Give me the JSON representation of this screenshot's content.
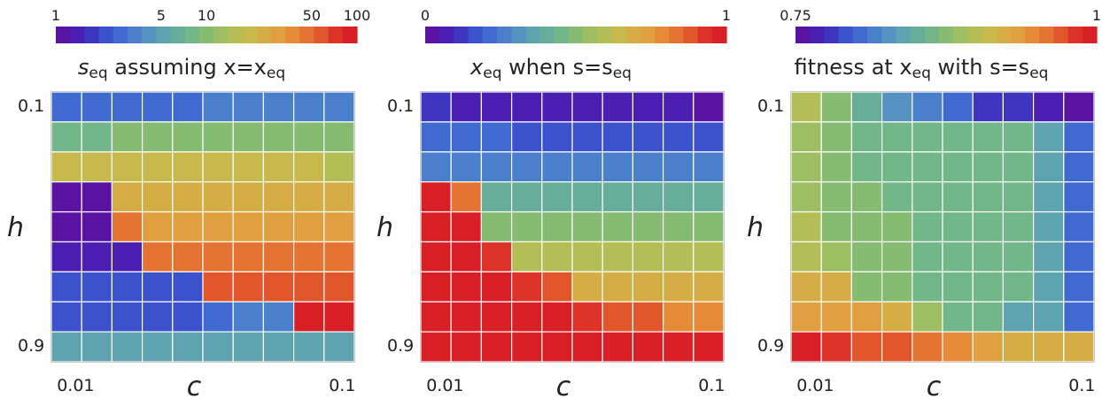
{
  "chart_data": [
    {
      "type": "heatmap",
      "title_main": "s",
      "title_sub": "eq",
      "title_rest": " assuming x=x",
      "title_sub2": "eq",
      "xlabel": "c",
      "ylabel": "h",
      "x_tick_labels": [
        "0.01",
        "0.1"
      ],
      "y_tick_labels": [
        "0.1",
        "0.9"
      ],
      "colorbar": {
        "scale": "log",
        "min": 1,
        "max": 100,
        "tick_labels": [
          "1",
          "5",
          "10",
          "50",
          "100"
        ],
        "tick_values": [
          1,
          5,
          10,
          50,
          100
        ]
      },
      "values": [
        [
          2.5,
          2.5,
          2.5,
          2.5,
          2.5,
          3,
          3,
          3,
          3,
          3
        ],
        [
          8,
          8,
          10,
          10,
          10,
          10,
          10,
          10,
          10,
          10
        ],
        [
          20,
          20,
          20,
          20,
          20,
          20,
          20,
          20,
          20,
          15
        ],
        [
          1,
          1,
          25,
          25,
          25,
          25,
          25,
          25,
          25,
          25
        ],
        [
          1,
          1,
          45,
          30,
          30,
          30,
          30,
          30,
          30,
          30
        ],
        [
          1.3,
          1.3,
          1.3,
          45,
          45,
          45,
          45,
          45,
          45,
          45
        ],
        [
          1.8,
          1.8,
          1.8,
          1.8,
          2.2,
          60,
          60,
          65,
          65,
          65
        ],
        [
          2,
          2,
          2,
          2,
          2,
          2.5,
          3.5,
          3.5,
          100,
          100
        ],
        [
          5,
          5,
          5,
          5,
          5,
          5,
          5,
          5,
          5,
          5
        ]
      ]
    },
    {
      "type": "heatmap",
      "title_main": "x",
      "title_sub": "eq",
      "title_rest": " when s=s",
      "title_sub2": "eq",
      "xlabel": "c",
      "ylabel": "h",
      "x_tick_labels": [
        "0.01",
        "0.1"
      ],
      "y_tick_labels": [
        "0.1",
        "0.9"
      ],
      "colorbar": {
        "scale": "linear",
        "min": 0,
        "max": 1,
        "tick_labels": [
          "0",
          "1"
        ],
        "tick_values": [
          0,
          1
        ]
      },
      "values": [
        [
          0.1,
          0.06,
          0.06,
          0.06,
          0.05,
          0.05,
          0.05,
          0.05,
          0.03,
          0.02
        ],
        [
          0.2,
          0.18,
          0.18,
          0.16,
          0.16,
          0.14,
          0.14,
          0.14,
          0.14,
          0.14
        ],
        [
          0.27,
          0.27,
          0.27,
          0.25,
          0.25,
          0.25,
          0.25,
          0.25,
          0.25,
          0.25
        ],
        [
          1.0,
          0.84,
          0.38,
          0.38,
          0.38,
          0.38,
          0.38,
          0.38,
          0.38,
          0.38
        ],
        [
          1.0,
          0.98,
          0.48,
          0.48,
          0.48,
          0.48,
          0.48,
          0.48,
          0.48,
          0.48
        ],
        [
          1.0,
          1.0,
          0.93,
          0.6,
          0.6,
          0.6,
          0.6,
          0.6,
          0.6,
          0.6
        ],
        [
          1.0,
          1.0,
          1.0,
          0.95,
          0.88,
          0.7,
          0.7,
          0.7,
          0.7,
          0.7
        ],
        [
          1.0,
          1.0,
          1.0,
          1.0,
          1.0,
          0.94,
          0.92,
          0.9,
          0.8,
          0.8
        ],
        [
          1.0,
          1.0,
          1.0,
          1.0,
          1.0,
          1.0,
          1.0,
          1.0,
          0.98,
          0.98
        ]
      ]
    },
    {
      "type": "heatmap",
      "title_main": "fitness at x",
      "title_sub": "eq",
      "title_rest": " with s=s",
      "title_sub2": "eq",
      "xlabel": "c",
      "ylabel": "h",
      "x_tick_labels": [
        "0.01",
        "0.1"
      ],
      "y_tick_labels": [
        "0.1",
        "0.9"
      ],
      "colorbar": {
        "scale": "linear",
        "min": 0.75,
        "max": 1,
        "tick_labels": [
          "0.75",
          "1"
        ],
        "tick_values": [
          0.75,
          1
        ]
      },
      "values": [
        [
          0.9,
          0.87,
          0.85,
          0.83,
          0.81,
          0.8,
          0.78,
          0.77,
          0.76,
          0.75
        ],
        [
          0.89,
          0.87,
          0.86,
          0.86,
          0.86,
          0.86,
          0.86,
          0.86,
          0.84,
          0.8
        ],
        [
          0.89,
          0.88,
          0.86,
          0.86,
          0.86,
          0.86,
          0.86,
          0.86,
          0.84,
          0.8
        ],
        [
          0.89,
          0.88,
          0.87,
          0.86,
          0.86,
          0.86,
          0.86,
          0.86,
          0.84,
          0.8
        ],
        [
          0.9,
          0.88,
          0.88,
          0.87,
          0.86,
          0.86,
          0.86,
          0.86,
          0.84,
          0.8
        ],
        [
          0.9,
          0.89,
          0.88,
          0.87,
          0.86,
          0.86,
          0.86,
          0.86,
          0.84,
          0.8
        ],
        [
          0.92,
          0.92,
          0.88,
          0.88,
          0.86,
          0.86,
          0.86,
          0.86,
          0.84,
          0.8
        ],
        [
          0.94,
          0.94,
          0.94,
          0.93,
          0.89,
          0.86,
          0.86,
          0.84,
          0.84,
          0.8
        ],
        [
          1.0,
          0.99,
          0.98,
          0.97,
          0.96,
          0.95,
          0.94,
          0.93,
          0.93,
          0.92
        ]
      ]
    }
  ]
}
